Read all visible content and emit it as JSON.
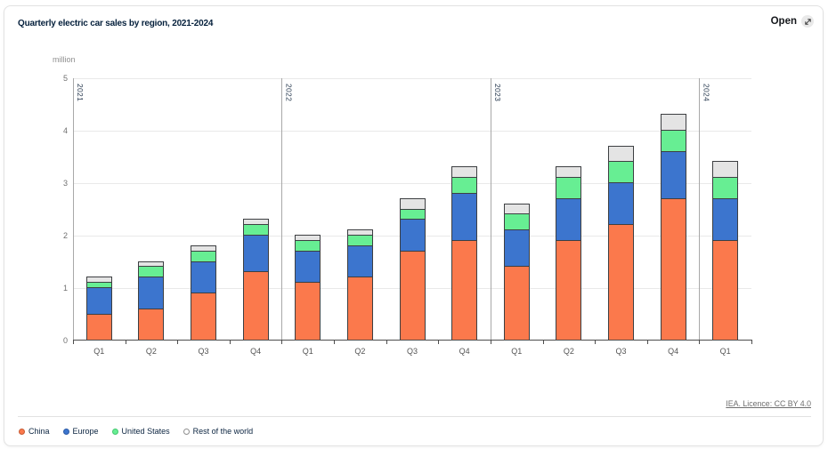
{
  "header": {
    "title": "Quarterly electric car sales by region, 2021-2024",
    "open_label": "Open"
  },
  "chart_data": {
    "type": "bar",
    "stacked": true,
    "title": "Quarterly electric car sales by region, 2021-2024",
    "ylabel": "million",
    "xlabel": "",
    "categories": [
      "Q1",
      "Q2",
      "Q3",
      "Q4",
      "Q1",
      "Q2",
      "Q3",
      "Q4",
      "Q1",
      "Q2",
      "Q3",
      "Q4",
      "Q1"
    ],
    "year_groups": [
      {
        "label": "2021",
        "start_index": 0
      },
      {
        "label": "2022",
        "start_index": 4
      },
      {
        "label": "2023",
        "start_index": 8
      },
      {
        "label": "2024",
        "start_index": 12
      }
    ],
    "series": [
      {
        "name": "China",
        "color": "#FB794C",
        "values": [
          0.5,
          0.6,
          0.9,
          1.3,
          1.1,
          1.2,
          1.7,
          1.9,
          1.4,
          1.9,
          2.2,
          2.7,
          1.9
        ]
      },
      {
        "name": "Europe",
        "color": "#3C75CE",
        "values": [
          0.5,
          0.6,
          0.6,
          0.7,
          0.6,
          0.6,
          0.6,
          0.9,
          0.7,
          0.8,
          0.8,
          0.9,
          0.8
        ]
      },
      {
        "name": "United States",
        "color": "#67EE93",
        "values": [
          0.1,
          0.2,
          0.2,
          0.2,
          0.2,
          0.2,
          0.2,
          0.3,
          0.3,
          0.4,
          0.4,
          0.4,
          0.4
        ]
      },
      {
        "name": "Rest of the world",
        "color": "#E4E4E4",
        "values": [
          0.1,
          0.1,
          0.1,
          0.1,
          0.1,
          0.1,
          0.2,
          0.2,
          0.2,
          0.2,
          0.3,
          0.3,
          0.3
        ]
      }
    ],
    "ylim": [
      0,
      5
    ],
    "yticks": [
      0,
      1,
      2,
      3,
      4,
      5
    ],
    "grid": "horizontal",
    "legend_position": "bottom"
  },
  "legend": {
    "items": [
      {
        "label": "China",
        "color": "#FB794C",
        "border": "#c65a33"
      },
      {
        "label": "Europe",
        "color": "#3C75CE",
        "border": "#2d5ba6"
      },
      {
        "label": "United States",
        "color": "#67EE93",
        "border": "#45c870"
      },
      {
        "label": "Rest of the world",
        "color": "#ffffff",
        "border": "#8f8f8f"
      }
    ]
  },
  "footer": {
    "license_label": "IEA. Licence: CC BY 4.0"
  }
}
